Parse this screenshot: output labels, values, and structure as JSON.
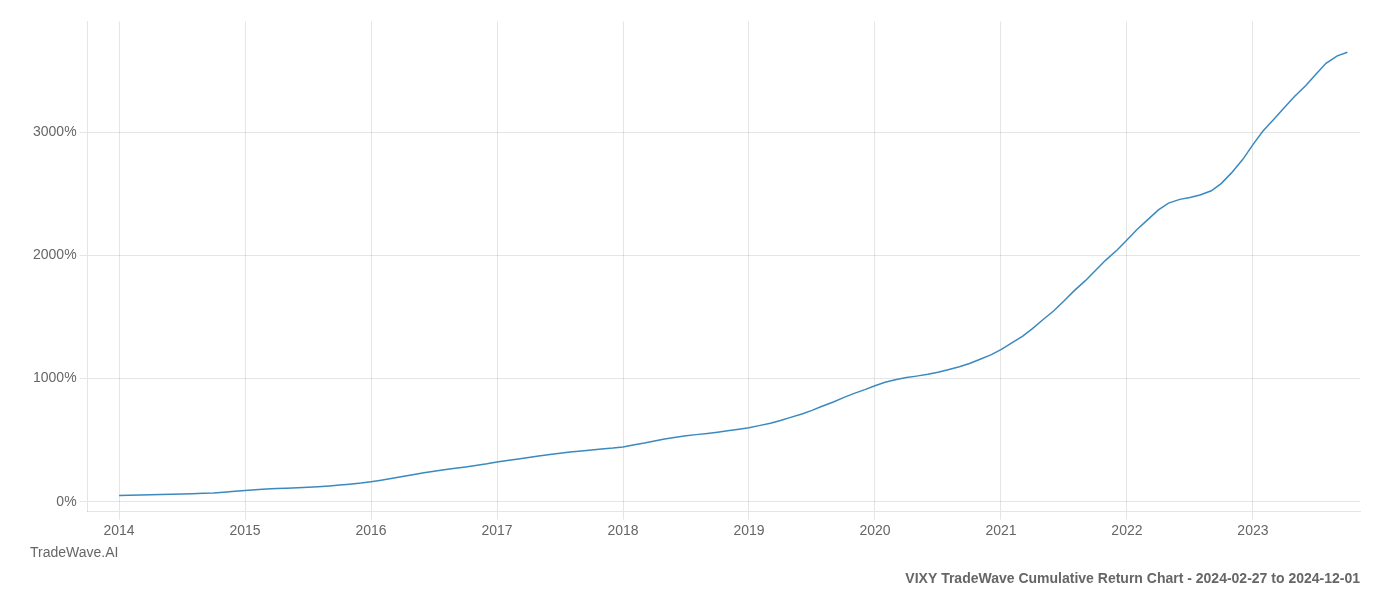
{
  "chart_data": {
    "type": "line",
    "title": "VIXY TradeWave Cumulative Return Chart - 2024-02-27 to 2024-12-01",
    "annotations": [
      "TradeWave.AI"
    ],
    "color": "#3a8abf",
    "grid": true,
    "x": [
      2014.0,
      2014.08,
      2014.17,
      2014.25,
      2014.33,
      2014.42,
      2014.5,
      2014.58,
      2014.67,
      2014.75,
      2014.83,
      2014.92,
      2015.0,
      2015.08,
      2015.17,
      2015.25,
      2015.33,
      2015.42,
      2015.5,
      2015.58,
      2015.67,
      2015.75,
      2015.83,
      2015.92,
      2016.0,
      2016.08,
      2016.17,
      2016.25,
      2016.33,
      2016.42,
      2016.5,
      2016.58,
      2016.67,
      2016.75,
      2016.83,
      2016.92,
      2017.0,
      2017.08,
      2017.17,
      2017.25,
      2017.33,
      2017.42,
      2017.5,
      2017.58,
      2017.67,
      2017.75,
      2017.83,
      2017.92,
      2018.0,
      2018.08,
      2018.17,
      2018.25,
      2018.33,
      2018.42,
      2018.5,
      2018.58,
      2018.67,
      2018.75,
      2018.83,
      2018.92,
      2019.0,
      2019.08,
      2019.17,
      2019.25,
      2019.33,
      2019.42,
      2019.5,
      2019.58,
      2019.67,
      2019.75,
      2019.83,
      2019.92,
      2020.0,
      2020.08,
      2020.17,
      2020.25,
      2020.33,
      2020.42,
      2020.5,
      2020.58,
      2020.67,
      2020.75,
      2020.83,
      2020.92,
      2021.0,
      2021.08,
      2021.17,
      2021.25,
      2021.33,
      2021.42,
      2021.5,
      2021.58,
      2021.67,
      2021.75,
      2021.83,
      2021.92,
      2022.0,
      2022.08,
      2022.17,
      2022.25,
      2022.33,
      2022.42,
      2022.5,
      2022.58,
      2022.67,
      2022.75,
      2022.83,
      2022.92,
      2023.0,
      2023.08,
      2023.17,
      2023.25,
      2023.33,
      2023.42,
      2023.5,
      2023.58,
      2023.67,
      2023.75
    ],
    "values": [
      50,
      52,
      54,
      56,
      58,
      60,
      62,
      65,
      68,
      72,
      78,
      85,
      92,
      98,
      103,
      107,
      110,
      113,
      117,
      122,
      128,
      135,
      143,
      152,
      163,
      175,
      190,
      205,
      220,
      235,
      248,
      260,
      272,
      283,
      295,
      308,
      322,
      335,
      348,
      360,
      372,
      383,
      393,
      403,
      412,
      420,
      428,
      436,
      445,
      460,
      477,
      494,
      510,
      523,
      535,
      545,
      555,
      565,
      576,
      588,
      600,
      618,
      638,
      660,
      685,
      712,
      742,
      775,
      810,
      845,
      878,
      910,
      942,
      970,
      993,
      1008,
      1020,
      1035,
      1052,
      1072,
      1096,
      1123,
      1155,
      1192,
      1235,
      1285,
      1342,
      1406,
      1476,
      1551,
      1630,
      1712,
      1795,
      1878,
      1960,
      2042,
      2125,
      2210,
      2295,
      2370,
      2425,
      2455,
      2470,
      2490,
      2525,
      2585,
      2670,
      2780,
      2900,
      3010,
      3110,
      3200,
      3290,
      3380,
      3470,
      3560,
      3620,
      3650
    ],
    "xlim": [
      2013.75,
      2023.85
    ],
    "xticks": [
      2014,
      2015,
      2016,
      2017,
      2018,
      2019,
      2020,
      2021,
      2022,
      2023
    ],
    "ylim": [
      -80,
      3900
    ],
    "yticks": [
      {
        "value": 0,
        "label": "0%"
      },
      {
        "value": 1000,
        "label": "1000%"
      },
      {
        "value": 2000,
        "label": "2000%"
      },
      {
        "value": 3000,
        "label": "3000%"
      }
    ]
  }
}
